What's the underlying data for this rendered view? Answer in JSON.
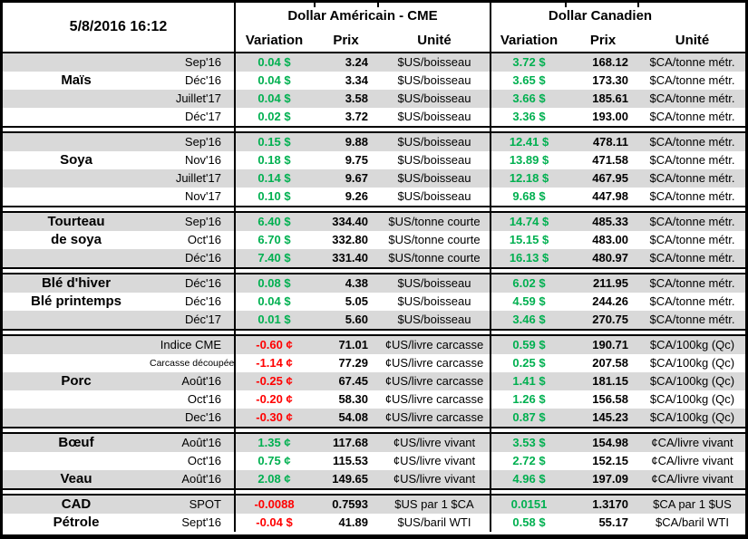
{
  "header": {
    "datetime": "5/8/2016 16:12",
    "us_title": "Dollar Américain - CME",
    "ca_title": "Dollar Canadien",
    "columns": {
      "variation": "Variation",
      "prix": "Prix",
      "unite": "Unité"
    }
  },
  "colors": {
    "positive": "#00B050",
    "negative": "#FF0000",
    "stripe": "#D9D9D9",
    "border": "#000000"
  },
  "sections": [
    {
      "rows": [
        {
          "name": "",
          "month": "Sep'16",
          "us": {
            "var": "0.04 $",
            "dir": "up",
            "prix": "3.24",
            "unit": "$US/boisseau"
          },
          "ca": {
            "var": "3.72 $",
            "dir": "up",
            "prix": "168.12",
            "unit": "$CA/tonne métr."
          }
        },
        {
          "name": "Maïs",
          "month": "Déc'16",
          "us": {
            "var": "0.04 $",
            "dir": "up",
            "prix": "3.34",
            "unit": "$US/boisseau"
          },
          "ca": {
            "var": "3.65 $",
            "dir": "up",
            "prix": "173.30",
            "unit": "$CA/tonne métr."
          }
        },
        {
          "name": "",
          "month": "Juillet'17",
          "us": {
            "var": "0.04 $",
            "dir": "up",
            "prix": "3.58",
            "unit": "$US/boisseau"
          },
          "ca": {
            "var": "3.66 $",
            "dir": "up",
            "prix": "185.61",
            "unit": "$CA/tonne métr."
          }
        },
        {
          "name": "",
          "month": "Déc'17",
          "us": {
            "var": "0.02 $",
            "dir": "up",
            "prix": "3.72",
            "unit": "$US/boisseau"
          },
          "ca": {
            "var": "3.36 $",
            "dir": "up",
            "prix": "193.00",
            "unit": "$CA/tonne métr."
          }
        }
      ]
    },
    {
      "rows": [
        {
          "name": "",
          "month": "Sep'16",
          "us": {
            "var": "0.15 $",
            "dir": "up",
            "prix": "9.88",
            "unit": "$US/boisseau"
          },
          "ca": {
            "var": "12.41 $",
            "dir": "up",
            "prix": "478.11",
            "unit": "$CA/tonne métr."
          }
        },
        {
          "name": "Soya",
          "month": "Nov'16",
          "us": {
            "var": "0.18 $",
            "dir": "up",
            "prix": "9.75",
            "unit": "$US/boisseau"
          },
          "ca": {
            "var": "13.89 $",
            "dir": "up",
            "prix": "471.58",
            "unit": "$CA/tonne métr."
          }
        },
        {
          "name": "",
          "month": "Juillet'17",
          "us": {
            "var": "0.14 $",
            "dir": "up",
            "prix": "9.67",
            "unit": "$US/boisseau"
          },
          "ca": {
            "var": "12.18 $",
            "dir": "up",
            "prix": "467.95",
            "unit": "$CA/tonne métr."
          }
        },
        {
          "name": "",
          "month": "Nov'17",
          "us": {
            "var": "0.10 $",
            "dir": "up",
            "prix": "9.26",
            "unit": "$US/boisseau"
          },
          "ca": {
            "var": "9.68 $",
            "dir": "up",
            "prix": "447.98",
            "unit": "$CA/tonne métr."
          }
        }
      ]
    },
    {
      "rows": [
        {
          "name": "Tourteau",
          "month": "Sep'16",
          "us": {
            "var": "6.40 $",
            "dir": "up",
            "prix": "334.40",
            "unit": "$US/tonne courte"
          },
          "ca": {
            "var": "14.74 $",
            "dir": "up",
            "prix": "485.33",
            "unit": "$CA/tonne métr."
          }
        },
        {
          "name": "de soya",
          "month": "Oct'16",
          "us": {
            "var": "6.70 $",
            "dir": "up",
            "prix": "332.80",
            "unit": "$US/tonne courte"
          },
          "ca": {
            "var": "15.15 $",
            "dir": "up",
            "prix": "483.00",
            "unit": "$CA/tonne métr."
          }
        },
        {
          "name": "",
          "month": "Déc'16",
          "us": {
            "var": "7.40 $",
            "dir": "up",
            "prix": "331.40",
            "unit": "$US/tonne courte"
          },
          "ca": {
            "var": "16.13 $",
            "dir": "up",
            "prix": "480.97",
            "unit": "$CA/tonne métr."
          }
        }
      ]
    },
    {
      "rows": [
        {
          "name": "Blé d'hiver",
          "month": "Déc'16",
          "us": {
            "var": "0.08 $",
            "dir": "up",
            "prix": "4.38",
            "unit": "$US/boisseau"
          },
          "ca": {
            "var": "6.02 $",
            "dir": "up",
            "prix": "211.95",
            "unit": "$CA/tonne métr."
          }
        },
        {
          "name": "Blé printemps",
          "month": "Déc'16",
          "us": {
            "var": "0.04 $",
            "dir": "up",
            "prix": "5.05",
            "unit": "$US/boisseau"
          },
          "ca": {
            "var": "4.59 $",
            "dir": "up",
            "prix": "244.26",
            "unit": "$CA/tonne métr."
          }
        },
        {
          "name": "",
          "month": "Déc'17",
          "us": {
            "var": "0.01 $",
            "dir": "up",
            "prix": "5.60",
            "unit": "$US/boisseau"
          },
          "ca": {
            "var": "3.46 $",
            "dir": "up",
            "prix": "270.75",
            "unit": "$CA/tonne métr."
          }
        }
      ]
    },
    {
      "rows": [
        {
          "name": "",
          "month": "Indice CME",
          "us": {
            "var": "-0.60 ¢",
            "dir": "down",
            "prix": "71.01",
            "unit": "¢US/livre carcasse"
          },
          "ca": {
            "var": "0.59 $",
            "dir": "up",
            "prix": "190.71",
            "unit": "$CA/100kg (Qc)"
          }
        },
        {
          "name": "",
          "month": "Carcasse découpée",
          "small": true,
          "us": {
            "var": "-1.14 ¢",
            "dir": "down",
            "prix": "77.29",
            "unit": "¢US/livre carcasse"
          },
          "ca": {
            "var": "0.25 $",
            "dir": "up",
            "prix": "207.58",
            "unit": "$CA/100kg (Qc)"
          }
        },
        {
          "name": "Porc",
          "month": "Août'16",
          "us": {
            "var": "-0.25 ¢",
            "dir": "down",
            "prix": "67.45",
            "unit": "¢US/livre carcasse"
          },
          "ca": {
            "var": "1.41 $",
            "dir": "up",
            "prix": "181.15",
            "unit": "$CA/100kg (Qc)"
          }
        },
        {
          "name": "",
          "month": "Oct'16",
          "us": {
            "var": "-0.20 ¢",
            "dir": "down",
            "prix": "58.30",
            "unit": "¢US/livre carcasse"
          },
          "ca": {
            "var": "1.26 $",
            "dir": "up",
            "prix": "156.58",
            "unit": "$CA/100kg (Qc)"
          }
        },
        {
          "name": "",
          "month": "Dec'16",
          "us": {
            "var": "-0.30 ¢",
            "dir": "down",
            "prix": "54.08",
            "unit": "¢US/livre carcasse"
          },
          "ca": {
            "var": "0.87 $",
            "dir": "up",
            "prix": "145.23",
            "unit": "$CA/100kg (Qc)"
          }
        }
      ]
    },
    {
      "rows": [
        {
          "name": "Bœuf",
          "month": "Août'16",
          "us": {
            "var": "1.35 ¢",
            "dir": "up",
            "prix": "117.68",
            "unit": "¢US/livre vivant"
          },
          "ca": {
            "var": "3.53 $",
            "dir": "up",
            "prix": "154.98",
            "unit": "¢CA/livre vivant"
          }
        },
        {
          "name": "",
          "month": "Oct'16",
          "us": {
            "var": "0.75 ¢",
            "dir": "up",
            "prix": "115.53",
            "unit": "¢US/livre vivant"
          },
          "ca": {
            "var": "2.72 $",
            "dir": "up",
            "prix": "152.15",
            "unit": "¢CA/livre vivant"
          }
        },
        {
          "name": "Veau",
          "month": "Août'16",
          "us": {
            "var": "2.08 ¢",
            "dir": "up",
            "prix": "149.65",
            "unit": "¢US/livre vivant"
          },
          "ca": {
            "var": "4.96 $",
            "dir": "up",
            "prix": "197.09",
            "unit": "¢CA/livre vivant"
          }
        }
      ]
    },
    {
      "rows": [
        {
          "name": "CAD",
          "month": "SPOT",
          "us": {
            "var": "-0.0088",
            "dir": "down",
            "prix": "0.7593",
            "unit": "$US par 1 $CA"
          },
          "ca": {
            "var": "0.0151",
            "dir": "up",
            "prix": "1.3170",
            "unit": "$CA par 1 $US"
          }
        },
        {
          "name": "Pétrole",
          "month": "Sept'16",
          "us": {
            "var": "-0.04 $",
            "dir": "down",
            "prix": "41.89",
            "unit": "$US/baril WTI"
          },
          "ca": {
            "var": "0.58 $",
            "dir": "up",
            "prix": "55.17",
            "unit": "$CA/baril WTI"
          }
        }
      ]
    }
  ]
}
